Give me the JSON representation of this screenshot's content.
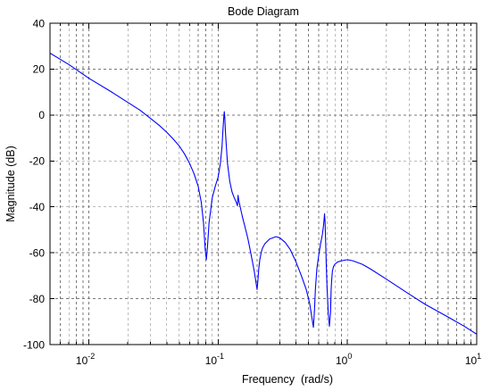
{
  "chart_data": {
    "type": "line",
    "title": "Bode Diagram",
    "xlabel": "Frequency  (rad/s)",
    "ylabel": "Magnitude (dB)",
    "x_scale": "log",
    "xlim": [
      0.005,
      10
    ],
    "ylim": [
      -100,
      40
    ],
    "grid": true,
    "legend": "none",
    "x_ticks": [
      {
        "value": 0.01,
        "base": "10",
        "exp": "-2"
      },
      {
        "value": 0.1,
        "base": "10",
        "exp": "-1"
      },
      {
        "value": 1,
        "base": "10",
        "exp": "0"
      },
      {
        "value": 10,
        "base": "10",
        "exp": "1"
      }
    ],
    "y_ticks": [
      {
        "value": 40,
        "label": "40"
      },
      {
        "value": 20,
        "label": "20"
      },
      {
        "value": 0,
        "label": "0"
      },
      {
        "value": -20,
        "label": "-20"
      },
      {
        "value": -40,
        "label": "-40"
      },
      {
        "value": -60,
        "label": "-60"
      },
      {
        "value": -80,
        "label": "-80"
      },
      {
        "value": -100,
        "label": "-100"
      }
    ],
    "colors": {
      "line": "#0000ff",
      "grid": "#7a7a7a",
      "axes": "#000000"
    },
    "series": [
      {
        "color": "#0000ff",
        "x": [
          0.005,
          0.007,
          0.01,
          0.015,
          0.02,
          0.025,
          0.03,
          0.035,
          0.04,
          0.045,
          0.05,
          0.055,
          0.06,
          0.065,
          0.07,
          0.074,
          0.077,
          0.0795,
          0.081,
          0.0825,
          0.085,
          0.09,
          0.095,
          0.1,
          0.104,
          0.107,
          0.109,
          0.1105,
          0.1115,
          0.1125,
          0.114,
          0.118,
          0.123,
          0.128,
          0.133,
          0.138,
          0.141,
          0.1425,
          0.144,
          0.146,
          0.148,
          0.15,
          0.155,
          0.16,
          0.165,
          0.17,
          0.175,
          0.18,
          0.185,
          0.19,
          0.195,
          0.2,
          0.203,
          0.206,
          0.21,
          0.215,
          0.22,
          0.23,
          0.25,
          0.28,
          0.3,
          0.33,
          0.36,
          0.4,
          0.44,
          0.48,
          0.51,
          0.53,
          0.545,
          0.556,
          0.565,
          0.58,
          0.6,
          0.62,
          0.64,
          0.655,
          0.665,
          0.672,
          0.678,
          0.685,
          0.695,
          0.71,
          0.725,
          0.74,
          0.748,
          0.755,
          0.765,
          0.78,
          0.8,
          0.84,
          0.9,
          1.0,
          1.1,
          1.3,
          1.5,
          2.0,
          3.0,
          4.0,
          6.0,
          8.0,
          10.0
        ],
        "y": [
          27,
          22,
          16,
          10,
          5.5,
          2,
          -1.5,
          -4.5,
          -7.5,
          -10.5,
          -13.5,
          -17,
          -21,
          -25.5,
          -31,
          -38,
          -47,
          -59,
          -63,
          -58,
          -47,
          -36,
          -31,
          -27,
          -21,
          -14,
          -6,
          -1,
          1.5,
          -1,
          -8,
          -21,
          -29,
          -33.5,
          -36,
          -38,
          -39.5,
          -35,
          -37,
          -38.5,
          -40,
          -41.5,
          -45,
          -48,
          -51,
          -54,
          -57.5,
          -61,
          -64.5,
          -68,
          -72,
          -76,
          -72,
          -67,
          -63,
          -60,
          -58,
          -56,
          -54,
          -53,
          -53.5,
          -55.5,
          -58.5,
          -64,
          -70,
          -76,
          -82,
          -88,
          -92.5,
          -85,
          -76,
          -67,
          -61,
          -56,
          -52,
          -47.5,
          -43,
          -47,
          -55,
          -64,
          -75,
          -86,
          -92,
          -86,
          -76,
          -72,
          -68,
          -66,
          -65,
          -64,
          -63.5,
          -63,
          -63.5,
          -65,
          -67,
          -71.5,
          -78,
          -82.5,
          -88,
          -92,
          -95.5
        ]
      }
    ]
  }
}
